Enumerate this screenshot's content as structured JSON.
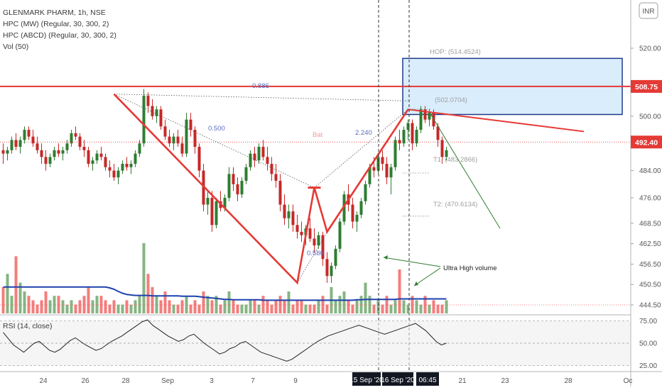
{
  "chart_data": {
    "type": "candlestick",
    "legend": [
      "GLENMARK PHARM, 1h, NSE",
      "HPC (MW) (Regular, 30, 300, 2)",
      "HPC (ABCD) (Regular, 30, 300, 2)",
      "Vol (50)"
    ],
    "currency": "INR",
    "price_axis": {
      "ticks": [
        "520.00",
        "508.75",
        "500.00",
        "492.40",
        "484.00",
        "476.00",
        "468.50",
        "462.50",
        "456.50",
        "450.50",
        "444.50"
      ],
      "range": [
        442,
        530
      ]
    },
    "rsi": {
      "label": "RSI (14, close)",
      "ticks": [
        "75.00",
        "50.00",
        "25.00"
      ],
      "range": [
        20,
        80
      ],
      "values": [
        62,
        55,
        48,
        44,
        40,
        45,
        50,
        52,
        47,
        42,
        40,
        43,
        48,
        53,
        56,
        52,
        48,
        45,
        42,
        44,
        48,
        52,
        55,
        58,
        62,
        66,
        70,
        74,
        76,
        70,
        66,
        62,
        58,
        55,
        52,
        54,
        58,
        60,
        55,
        50,
        46,
        42,
        38,
        40,
        44,
        46,
        50,
        52,
        48,
        44,
        40,
        38,
        36,
        34,
        32,
        30,
        32,
        36,
        40,
        44,
        48,
        52,
        55,
        58,
        60,
        62,
        64,
        66,
        68,
        70,
        68,
        66,
        64,
        62,
        60,
        62,
        64,
        66,
        68,
        70,
        72,
        68,
        64,
        58,
        52,
        48,
        50
      ]
    },
    "x_axis": {
      "ticks": [
        "24",
        "26",
        "28",
        "Sep",
        "3",
        "7",
        "9",
        "21",
        "23",
        "28",
        "Oc"
      ],
      "highlights": [
        "15 Sep '20",
        "16 Sep '20",
        "06:45"
      ]
    },
    "price_labels": [
      "508.75",
      "492.40"
    ],
    "annotations": {
      "fib_0886": "0.886",
      "fib_0500": "0.500",
      "fib_2240": "2.240",
      "fib_0580": "0.580",
      "bat": "Bat",
      "hop": "HOP: (514.4524)",
      "point_d": "(502.0704)",
      "t1": "T1: (483.2866)",
      "t2": "T2: (470.6134)",
      "ultra_high_volume": "Ultra High volume"
    },
    "pattern_points": {
      "X": 506.5,
      "A": 451.0,
      "B": 479.0,
      "C": 466.0,
      "D": 502.0
    },
    "candles": [
      [
        490,
        492,
        486,
        489
      ],
      [
        489,
        491,
        487,
        490
      ],
      [
        490,
        494,
        489,
        493
      ],
      [
        493,
        495,
        490,
        491
      ],
      [
        491,
        494,
        489,
        493
      ],
      [
        493,
        497,
        492,
        496
      ],
      [
        496,
        497,
        493,
        494
      ],
      [
        494,
        496,
        491,
        492
      ],
      [
        492,
        494,
        489,
        490
      ],
      [
        490,
        492,
        486,
        488
      ],
      [
        488,
        490,
        484,
        486
      ],
      [
        486,
        489,
        485,
        488
      ],
      [
        488,
        491,
        487,
        490
      ],
      [
        490,
        492,
        488,
        489
      ],
      [
        489,
        491,
        487,
        490
      ],
      [
        490,
        493,
        489,
        492
      ],
      [
        492,
        496,
        491,
        495
      ],
      [
        495,
        497,
        493,
        494
      ],
      [
        494,
        495,
        490,
        491
      ],
      [
        491,
        493,
        488,
        490
      ],
      [
        490,
        491,
        485,
        486
      ],
      [
        486,
        488,
        484,
        487
      ],
      [
        487,
        490,
        486,
        489
      ],
      [
        489,
        491,
        487,
        488
      ],
      [
        488,
        489,
        484,
        485
      ],
      [
        485,
        487,
        482,
        484
      ],
      [
        484,
        486,
        481,
        482
      ],
      [
        482,
        485,
        480,
        484
      ],
      [
        484,
        487,
        483,
        486
      ],
      [
        486,
        488,
        484,
        485
      ],
      [
        485,
        487,
        483,
        486
      ],
      [
        486,
        490,
        485,
        489
      ],
      [
        489,
        493,
        488,
        492
      ],
      [
        492,
        508,
        491,
        506
      ],
      [
        506,
        507,
        501,
        503
      ],
      [
        503,
        505,
        499,
        500
      ],
      [
        500,
        503,
        498,
        502
      ],
      [
        502,
        503,
        496,
        497
      ],
      [
        497,
        499,
        493,
        494
      ],
      [
        494,
        496,
        491,
        492
      ],
      [
        492,
        495,
        490,
        494
      ],
      [
        494,
        496,
        491,
        492
      ],
      [
        492,
        494,
        488,
        489
      ],
      [
        489,
        501,
        488,
        499
      ],
      [
        499,
        501,
        494,
        496
      ],
      [
        496,
        497,
        489,
        491
      ],
      [
        491,
        492,
        482,
        484
      ],
      [
        484,
        486,
        472,
        474
      ],
      [
        474,
        478,
        471,
        476
      ],
      [
        476,
        478,
        466,
        468
      ],
      [
        468,
        476,
        467,
        475
      ],
      [
        475,
        478,
        472,
        473
      ],
      [
        473,
        477,
        472,
        476
      ],
      [
        476,
        485,
        475,
        483
      ],
      [
        483,
        485,
        478,
        480
      ],
      [
        480,
        482,
        475,
        477
      ],
      [
        477,
        482,
        476,
        481
      ],
      [
        481,
        486,
        480,
        485
      ],
      [
        485,
        490,
        484,
        489
      ],
      [
        489,
        491,
        485,
        487
      ],
      [
        487,
        492,
        486,
        491
      ],
      [
        491,
        493,
        487,
        488
      ],
      [
        488,
        491,
        484,
        486
      ],
      [
        486,
        488,
        481,
        483
      ],
      [
        483,
        486,
        479,
        481
      ],
      [
        481,
        483,
        472,
        474
      ],
      [
        474,
        477,
        468,
        470
      ],
      [
        470,
        474,
        467,
        472
      ],
      [
        472,
        474,
        466,
        468
      ],
      [
        468,
        471,
        464,
        466
      ],
      [
        466,
        469,
        463,
        465
      ],
      [
        465,
        468,
        462,
        467
      ],
      [
        467,
        470,
        463,
        464
      ],
      [
        464,
        467,
        460,
        462
      ],
      [
        462,
        466,
        461,
        465
      ],
      [
        465,
        466,
        456,
        458
      ],
      [
        458,
        460,
        451,
        453
      ],
      [
        453,
        457,
        451,
        456
      ],
      [
        456,
        462,
        455,
        461
      ],
      [
        461,
        470,
        460,
        469
      ],
      [
        469,
        478,
        468,
        477
      ],
      [
        477,
        480,
        472,
        474
      ],
      [
        474,
        476,
        467,
        469
      ],
      [
        469,
        472,
        466,
        471
      ],
      [
        471,
        476,
        470,
        475
      ],
      [
        475,
        481,
        474,
        480
      ],
      [
        480,
        486,
        479,
        485
      ],
      [
        485,
        488,
        482,
        484
      ],
      [
        484,
        489,
        483,
        488
      ],
      [
        488,
        490,
        484,
        486
      ],
      [
        486,
        488,
        480,
        482
      ],
      [
        482,
        486,
        477,
        485
      ],
      [
        485,
        494,
        484,
        493
      ],
      [
        493,
        496,
        490,
        492
      ],
      [
        492,
        497,
        491,
        496
      ],
      [
        496,
        499,
        493,
        498
      ],
      [
        498,
        499,
        490,
        492
      ],
      [
        492,
        497,
        491,
        496
      ],
      [
        496,
        503,
        495,
        502
      ],
      [
        502,
        503,
        498,
        499
      ],
      [
        499,
        502,
        497,
        501
      ],
      [
        501,
        502,
        496,
        497
      ],
      [
        497,
        498,
        491,
        493
      ],
      [
        493,
        494,
        486,
        488
      ],
      [
        488,
        491,
        487,
        490
      ]
    ],
    "volumes": [
      6,
      9,
      4,
      13,
      7,
      5,
      4,
      3,
      2,
      3,
      5,
      3,
      4,
      4,
      3,
      2,
      3,
      2,
      3,
      4,
      6,
      3,
      4,
      4,
      3,
      2,
      3,
      2,
      2,
      3,
      2,
      3,
      4,
      16,
      9,
      6,
      4,
      3,
      5,
      3,
      2,
      2,
      3,
      4,
      2,
      3,
      2,
      5,
      4,
      3,
      4,
      2,
      3,
      5,
      3,
      2,
      2,
      2,
      3,
      3,
      2,
      4,
      3,
      2,
      3,
      4,
      3,
      5,
      2,
      3,
      3,
      2,
      2,
      2,
      3,
      4,
      2,
      6,
      3,
      4,
      5,
      3,
      2,
      3,
      4,
      7,
      4,
      2,
      3,
      2,
      4,
      2,
      3,
      10,
      3,
      2,
      4,
      3,
      2,
      4,
      2,
      3,
      2,
      2,
      3
    ],
    "volume_ma": [
      6,
      6,
      6,
      6,
      6,
      6,
      6,
      6,
      6,
      6,
      6,
      6,
      6,
      6,
      6,
      6,
      6,
      6,
      6,
      6,
      6,
      6,
      6,
      6,
      6,
      5.8,
      5.5,
      5,
      4.6,
      4.3,
      4.2,
      4.1,
      4.1,
      4.1,
      4.1,
      4,
      4,
      4,
      4,
      4,
      4,
      4,
      3.9,
      3.9,
      3.9,
      3.9,
      3.8,
      3.7,
      3.6,
      3.5,
      3.4,
      3.3,
      3.2,
      3.2,
      3.1,
      3.1,
      3.1,
      3.1,
      3.1,
      3.1,
      3.1,
      3,
      3,
      3,
      3,
      3,
      3,
      3,
      3,
      3,
      3,
      3,
      3,
      3,
      3,
      3,
      3,
      3,
      3,
      3,
      3,
      3,
      3,
      3.1,
      3.1,
      3.2,
      3.2,
      3.2,
      3.2,
      3.2,
      3.2,
      3.2,
      3.2,
      3.3,
      3.3,
      3.3,
      3.3,
      3.3,
      3.3,
      3.3,
      3.3,
      3.3,
      3.3,
      3.3,
      3.3
    ]
  }
}
